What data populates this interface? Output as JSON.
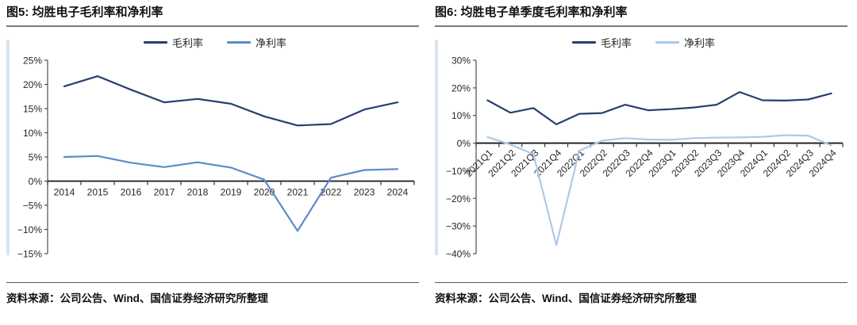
{
  "panels": [
    {
      "title": "图5: 均胜电子毛利率和净利率",
      "source": "资料来源：公司公告、Wind、国信证券经济研究所整理"
    },
    {
      "title": "图6: 均胜电子单季度毛利率和净利率",
      "source": "资料来源：公司公告、Wind、国信证券经济研究所整理"
    }
  ],
  "chart_data": [
    {
      "type": "line",
      "title": "图5: 均胜电子毛利率和净利率",
      "categories": [
        "2014",
        "2015",
        "2016",
        "2017",
        "2018",
        "2019",
        "2020",
        "2021",
        "2022",
        "2023",
        "2024"
      ],
      "series": [
        {
          "name": "毛利率",
          "color": "#273f6f",
          "values": [
            19.6,
            21.7,
            18.9,
            16.3,
            17.0,
            16.0,
            13.4,
            11.5,
            11.8,
            14.8,
            16.3
          ]
        },
        {
          "name": "净利率",
          "color": "#5b8cc8",
          "values": [
            5.0,
            5.2,
            3.8,
            2.9,
            3.9,
            2.8,
            0.3,
            -10.3,
            0.7,
            2.3,
            2.5
          ]
        }
      ],
      "unit": "%",
      "ylim": [
        -15,
        25
      ],
      "ystep": 5,
      "rotate_labels": false,
      "grid": false,
      "legend_position": "top",
      "xlabel": "",
      "ylabel": ""
    },
    {
      "type": "line",
      "title": "图6: 均胜电子单季度毛利率和净利率",
      "categories": [
        "2021Q1",
        "2021Q2",
        "2021Q3",
        "2021Q4",
        "2022Q1",
        "2022Q2",
        "2022Q3",
        "2022Q4",
        "2023Q1",
        "2023Q2",
        "2023Q3",
        "2023Q4",
        "2024Q1",
        "2024Q2",
        "2024Q3",
        "2024Q4"
      ],
      "series": [
        {
          "name": "毛利率",
          "color": "#273f6f",
          "values": [
            15.5,
            11.0,
            12.7,
            6.8,
            10.6,
            10.9,
            13.9,
            11.9,
            12.3,
            12.9,
            13.9,
            18.5,
            15.5,
            15.4,
            15.8,
            18.0
          ]
        },
        {
          "name": "净利率",
          "color": "#aec9e9",
          "values": [
            2.2,
            -0.5,
            -4.0,
            -36.9,
            -2.8,
            0.9,
            1.8,
            1.3,
            1.2,
            1.8,
            2.0,
            2.1,
            2.3,
            2.9,
            2.7,
            -0.8
          ]
        }
      ],
      "unit": "%",
      "ylim": [
        -40,
        30
      ],
      "ystep": 10,
      "rotate_labels": true,
      "grid": false,
      "legend_position": "top",
      "xlabel": "",
      "ylabel": ""
    }
  ]
}
